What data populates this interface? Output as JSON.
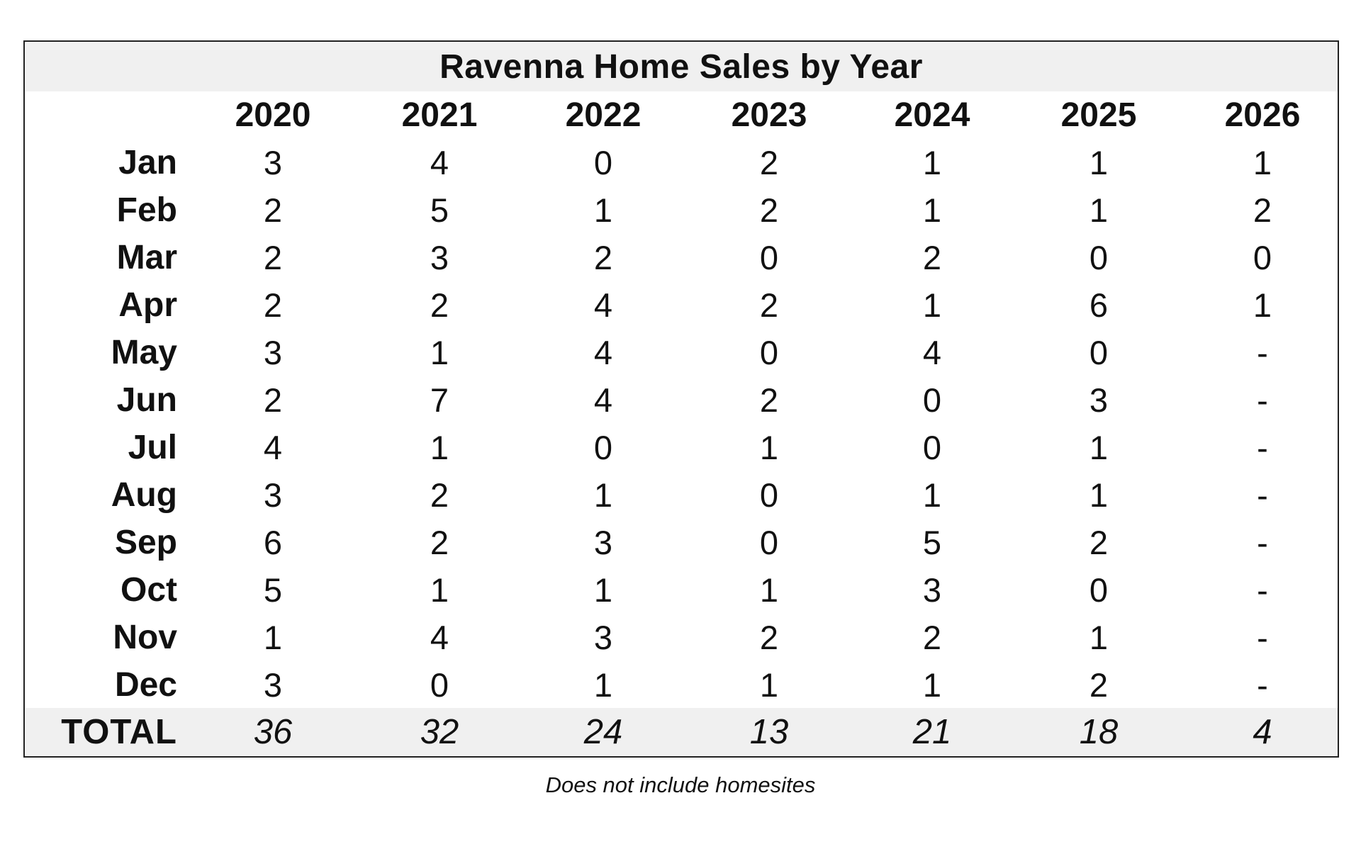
{
  "table": {
    "title": "Ravenna Home Sales by Year",
    "years": [
      "2020",
      "2021",
      "2022",
      "2023",
      "2024",
      "2025",
      "2026"
    ],
    "rows": [
      {
        "month": "Jan",
        "values": [
          "3",
          "4",
          "0",
          "2",
          "1",
          "1",
          "1"
        ]
      },
      {
        "month": "Feb",
        "values": [
          "2",
          "5",
          "1",
          "2",
          "1",
          "1",
          "2"
        ]
      },
      {
        "month": "Mar",
        "values": [
          "2",
          "3",
          "2",
          "0",
          "2",
          "0",
          "0"
        ]
      },
      {
        "month": "Apr",
        "values": [
          "2",
          "2",
          "4",
          "2",
          "1",
          "6",
          "1"
        ]
      },
      {
        "month": "May",
        "values": [
          "3",
          "1",
          "4",
          "0",
          "4",
          "0",
          "-"
        ]
      },
      {
        "month": "Jun",
        "values": [
          "2",
          "7",
          "4",
          "2",
          "0",
          "3",
          "-"
        ]
      },
      {
        "month": "Jul",
        "values": [
          "4",
          "1",
          "0",
          "1",
          "0",
          "1",
          "-"
        ]
      },
      {
        "month": "Aug",
        "values": [
          "3",
          "2",
          "1",
          "0",
          "1",
          "1",
          "-"
        ]
      },
      {
        "month": "Sep",
        "values": [
          "6",
          "2",
          "3",
          "0",
          "5",
          "2",
          "-"
        ]
      },
      {
        "month": "Oct",
        "values": [
          "5",
          "1",
          "1",
          "1",
          "3",
          "0",
          "-"
        ]
      },
      {
        "month": "Nov",
        "values": [
          "1",
          "4",
          "3",
          "2",
          "2",
          "1",
          "-"
        ]
      },
      {
        "month": "Dec",
        "values": [
          "3",
          "0",
          "1",
          "1",
          "1",
          "2",
          "-"
        ]
      }
    ],
    "total": {
      "label": "TOTAL",
      "values": [
        "36",
        "32",
        "24",
        "13",
        "21",
        "18",
        "4"
      ]
    }
  },
  "footnote": "Does not include homesites",
  "colors": {
    "band_background": "#f0f0f0",
    "border": "#222222",
    "text": "#111111"
  }
}
